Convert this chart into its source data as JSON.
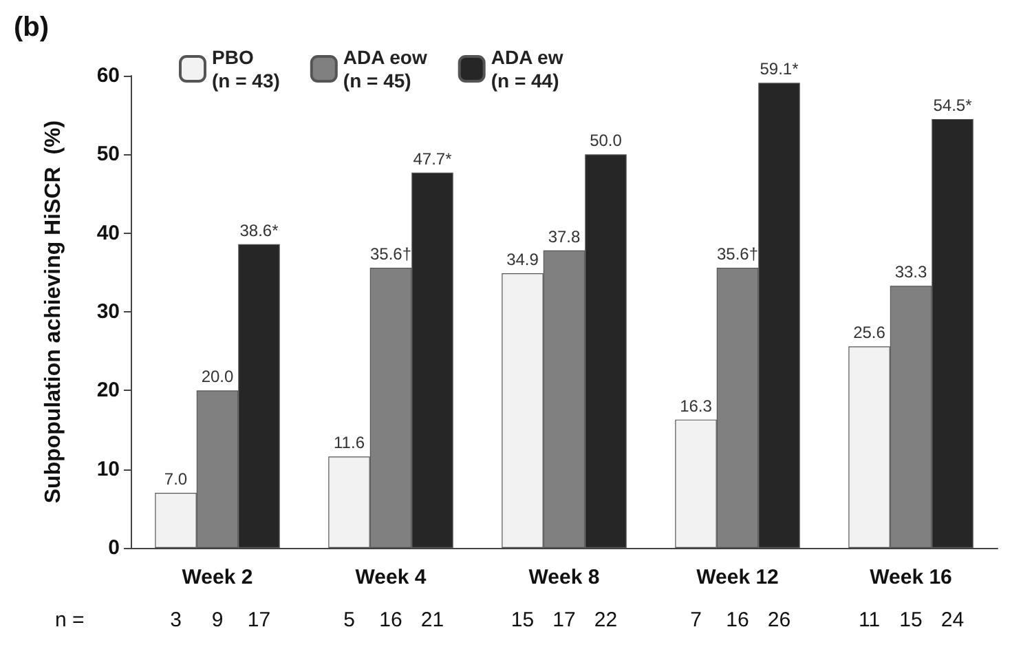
{
  "chart_data": {
    "type": "bar",
    "title": "(b)",
    "ylabel": "Subpopulation achieving HiSCR  (%)",
    "categories": [
      "Week 2",
      "Week 4",
      "Week 8",
      "Week 12",
      "Week 16"
    ],
    "series": [
      {
        "name": "PBO (n = 43)",
        "color": "#f2f2f2",
        "values": [
          7.0,
          11.6,
          34.9,
          16.3,
          25.6
        ],
        "value_labels": [
          "7.0",
          "11.6",
          "34.9",
          "16.3",
          "25.6"
        ]
      },
      {
        "name": "ADA eow (n = 45)",
        "color": "#808080",
        "values": [
          20.0,
          35.6,
          37.8,
          35.6,
          33.3
        ],
        "value_labels": [
          "20.0",
          "35.6†",
          "37.8",
          "35.6†",
          "33.3"
        ]
      },
      {
        "name": "ADA ew (n = 44)",
        "color": "#262626",
        "values": [
          38.6,
          47.7,
          50.0,
          59.1,
          54.5
        ],
        "value_labels": [
          "38.6*",
          "47.7*",
          "50.0",
          "59.1*",
          "54.5*"
        ]
      }
    ],
    "annotations": [
      "n =",
      "3",
      "9",
      "17",
      "5",
      "16",
      "21",
      "15",
      "17",
      "22",
      "7",
      "16",
      "26",
      "11",
      "15",
      "24"
    ],
    "ylim": [
      0,
      60
    ],
    "yticks": [
      0,
      10,
      20,
      30,
      40,
      50,
      60
    ],
    "grid": false,
    "legend": "top left"
  }
}
